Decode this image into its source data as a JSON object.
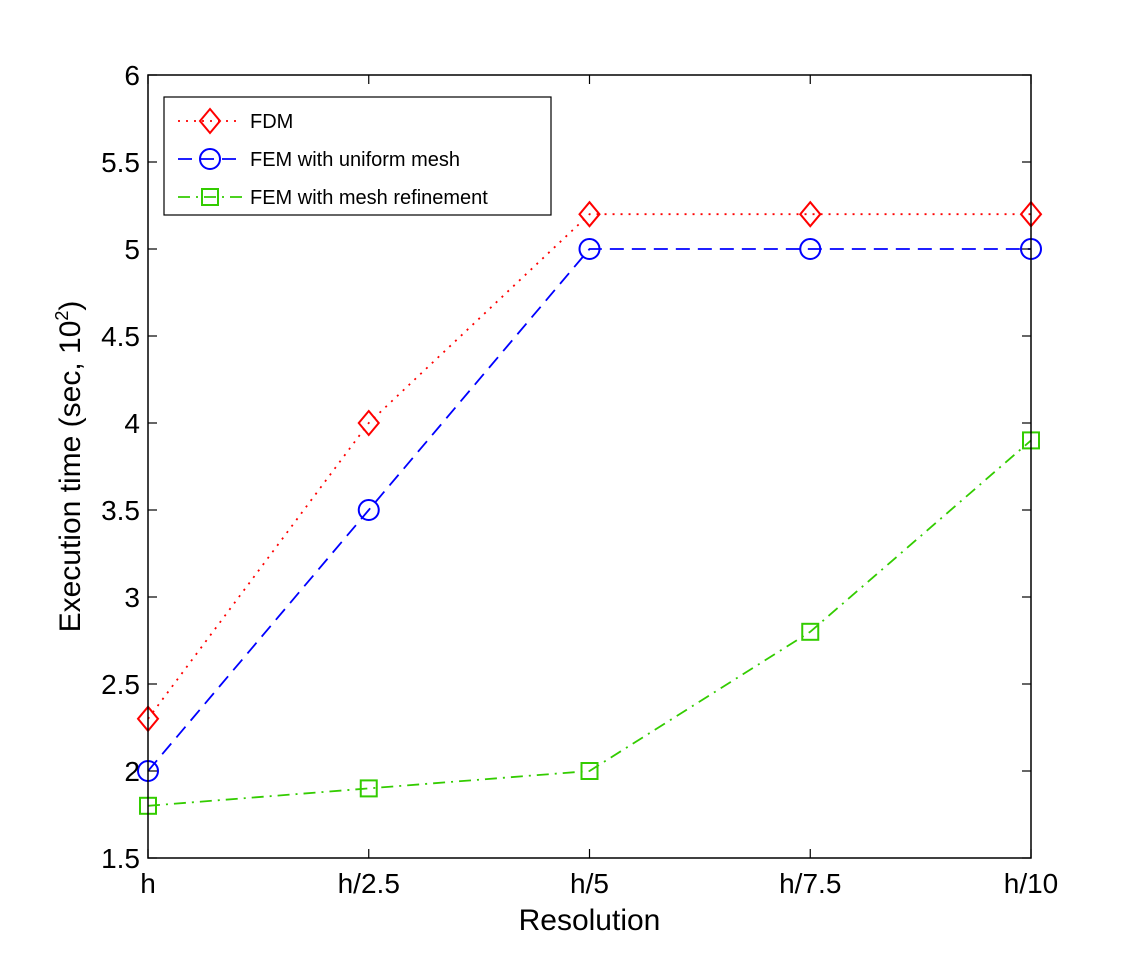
{
  "chart_data": {
    "type": "line",
    "title": "",
    "xlabel": "Resolution",
    "ylabel": {
      "base": "Execution time (sec, 10",
      "superscript": "2",
      "close": ")"
    },
    "categories": [
      "h",
      "h/2.5",
      "h/5",
      "h/7.5",
      "h/10"
    ],
    "ylim": [
      1.5,
      6
    ],
    "yticks": [
      "1.5",
      "2",
      "2.5",
      "3",
      "3.5",
      "4",
      "4.5",
      "5",
      "5.5",
      "6"
    ],
    "grid": false,
    "legend_position": "top-left",
    "series": [
      {
        "name": "FDM",
        "values": [
          2.3,
          4.0,
          5.2,
          5.2,
          5.2
        ],
        "color": "#ff0000",
        "line_style": "dotted",
        "marker": "diamond"
      },
      {
        "name": "FEM with uniform mesh",
        "values": [
          2.0,
          3.5,
          5.0,
          5.0,
          5.0
        ],
        "color": "#0000ff",
        "line_style": "dashed",
        "marker": "circle"
      },
      {
        "name": "FEM with mesh refinement",
        "values": [
          1.8,
          1.9,
          2.0,
          2.8,
          3.9
        ],
        "color": "#33cc00",
        "line_style": "dash-dot",
        "marker": "square"
      }
    ]
  }
}
